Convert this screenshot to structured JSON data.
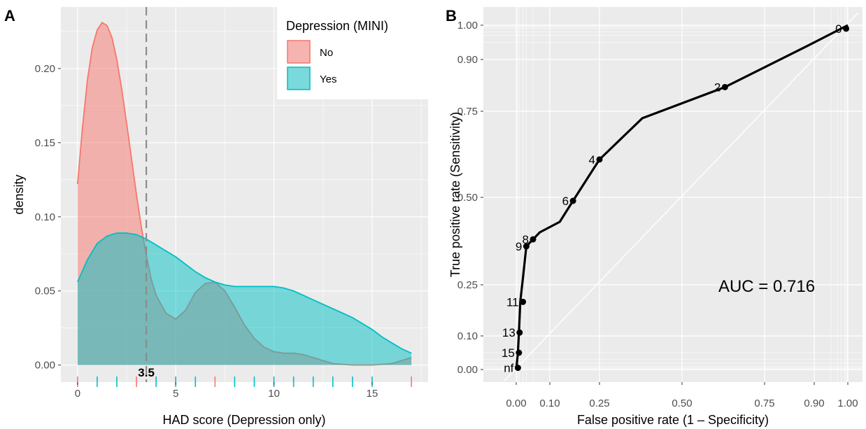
{
  "chart_data": [
    {
      "type": "area",
      "panel_label": "A",
      "xlabel": "HAD score (Depression only)",
      "ylabel": "density",
      "xlim": [
        -0.85,
        17.85
      ],
      "ylim": [
        -0.0115,
        0.2415
      ],
      "x_ticks": [
        0,
        5,
        10,
        15
      ],
      "y_ticks": [
        0.0,
        0.05,
        0.1,
        0.15,
        0.2
      ],
      "y_tick_labels": [
        "0.00",
        "0.05",
        "0.10",
        "0.15",
        "0.20"
      ],
      "grid": true,
      "legend": {
        "title": "Depression (MINI)",
        "position": "top-right"
      },
      "series": [
        {
          "name": "No",
          "color": "#F8766D",
          "x": [
            0,
            0.25,
            0.5,
            0.75,
            1,
            1.25,
            1.5,
            1.75,
            2,
            2.25,
            2.5,
            2.75,
            3,
            3.25,
            3.5,
            3.75,
            4,
            4.5,
            5,
            5.5,
            6,
            6.5,
            7,
            7.5,
            8,
            8.5,
            9,
            9.5,
            10,
            10.5,
            11,
            11.5,
            12,
            12.5,
            13,
            14,
            15,
            16,
            16.5,
            17
          ],
          "values": [
            0.122,
            0.16,
            0.192,
            0.214,
            0.226,
            0.231,
            0.229,
            0.221,
            0.206,
            0.186,
            0.163,
            0.139,
            0.115,
            0.093,
            0.074,
            0.058,
            0.047,
            0.035,
            0.031,
            0.037,
            0.049,
            0.055,
            0.056,
            0.05,
            0.039,
            0.027,
            0.018,
            0.012,
            0.009,
            0.008,
            0.008,
            0.007,
            0.005,
            0.003,
            0.001,
            0.0,
            0.0,
            0.001,
            0.003,
            0.005
          ]
        },
        {
          "name": "Yes",
          "color": "#00BFC4",
          "x": [
            0,
            0.5,
            1,
            1.5,
            2,
            2.5,
            3,
            3.5,
            4,
            4.5,
            5,
            5.5,
            6,
            6.5,
            7,
            7.5,
            8,
            8.5,
            9,
            9.5,
            10,
            10.5,
            11,
            11.5,
            12,
            12.5,
            13,
            13.5,
            14,
            14.5,
            15,
            15.5,
            16,
            16.5,
            17
          ],
          "values": [
            0.056,
            0.071,
            0.082,
            0.087,
            0.089,
            0.089,
            0.088,
            0.085,
            0.081,
            0.077,
            0.073,
            0.068,
            0.063,
            0.059,
            0.056,
            0.054,
            0.053,
            0.053,
            0.053,
            0.053,
            0.053,
            0.052,
            0.05,
            0.047,
            0.044,
            0.041,
            0.038,
            0.035,
            0.032,
            0.028,
            0.024,
            0.019,
            0.015,
            0.011,
            0.008
          ]
        }
      ],
      "cutoff": {
        "value": 3.5,
        "label": "3.5"
      },
      "rug": {
        "No": [
          0,
          3,
          7,
          17
        ],
        "Yes": [
          1,
          2,
          4,
          5,
          6,
          8,
          9,
          10,
          11,
          12,
          13,
          14,
          15
        ]
      }
    },
    {
      "type": "line",
      "panel_label": "B",
      "xlabel": "False positive rate (1 – Specificity)",
      "ylabel": "True positive rate (Sensitivity)",
      "x_ticks": [
        0.0,
        0.1,
        0.25,
        0.5,
        0.75,
        0.9,
        1.0
      ],
      "x_tick_labels": [
        "0.00",
        "0.10",
        "0.25",
        "0.50",
        "0.75",
        "0.90",
        "1.00"
      ],
      "y_ticks": [
        0.0,
        0.1,
        0.25,
        0.5,
        0.75,
        0.9,
        1.0
      ],
      "y_tick_labels": [
        "0.00",
        "0.10",
        "0.25",
        "0.50",
        "0.75",
        "0.90",
        "1.00"
      ],
      "scale": "probit",
      "grid": true,
      "diagonal": true,
      "annotation": "AUC = 0.716",
      "curve": {
        "x": [
          0,
          0.005,
          0.008,
          0.012,
          0.02,
          0.03,
          0.05,
          0.07,
          0.13,
          0.17,
          0.25,
          0.38,
          0.63,
          0.88,
          1.0
        ],
        "y": [
          0,
          0.05,
          0.11,
          0.2,
          0.27,
          0.36,
          0.38,
          0.4,
          0.43,
          0.49,
          0.61,
          0.73,
          0.82,
          0.94,
          1.0
        ]
      },
      "points": [
        {
          "label": "0",
          "x": 0.995,
          "y": 0.99
        },
        {
          "label": "2",
          "x": 0.63,
          "y": 0.82
        },
        {
          "label": "4",
          "x": 0.25,
          "y": 0.61
        },
        {
          "label": "6",
          "x": 0.17,
          "y": 0.49
        },
        {
          "label": "8",
          "x": 0.05,
          "y": 0.38
        },
        {
          "label": "9",
          "x": 0.03,
          "y": 0.36
        },
        {
          "label": "11",
          "x": 0.02,
          "y": 0.2
        },
        {
          "label": "13",
          "x": 0.01,
          "y": 0.11
        },
        {
          "label": "15",
          "x": 0.008,
          "y": 0.05
        },
        {
          "label": "nf",
          "x": 0.005,
          "y": 0.005
        }
      ]
    }
  ]
}
